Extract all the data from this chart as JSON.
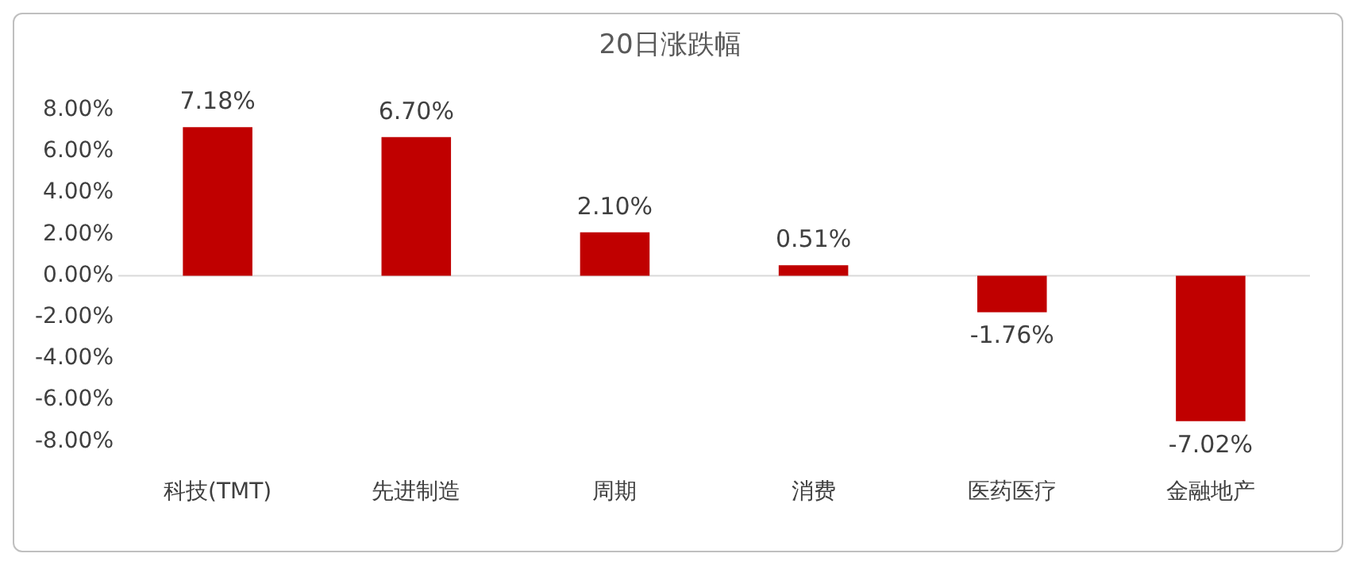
{
  "chart_data": {
    "type": "bar",
    "title": "20日涨跌幅",
    "categories": [
      "科技(TMT)",
      "先进制造",
      "周期",
      "消费",
      "医药医疗",
      "金融地产"
    ],
    "values": [
      7.18,
      6.7,
      2.1,
      0.51,
      -1.76,
      -7.02
    ],
    "value_labels": [
      "7.18%",
      "6.70%",
      "2.10%",
      "0.51%",
      "-1.76%",
      "-7.02%"
    ],
    "color": "#c00000",
    "ylim": [
      -8,
      8
    ],
    "yticks": [
      {
        "value": -8,
        "label": "-8.00%"
      },
      {
        "value": -6,
        "label": "-6.00%"
      },
      {
        "value": -4,
        "label": "-4.00%"
      },
      {
        "value": -2,
        "label": "-2.00%"
      },
      {
        "value": 0,
        "label": "0.00%"
      },
      {
        "value": 2,
        "label": "2.00%"
      },
      {
        "value": 4,
        "label": "4.00%"
      },
      {
        "value": 6,
        "label": "6.00%"
      },
      {
        "value": 8,
        "label": "8.00%"
      }
    ],
    "ref_lines": [
      {
        "axis": "y",
        "value": 0,
        "color": "#d9d9d9"
      }
    ],
    "grid": false,
    "legend": false
  }
}
